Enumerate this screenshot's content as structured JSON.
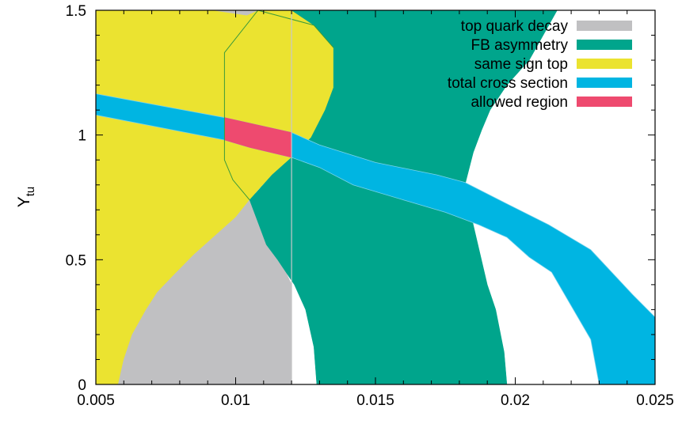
{
  "chart_data": {
    "type": "area",
    "ylabel": "Y",
    "ylabel_sub": "tu",
    "xlim": [
      0.005,
      0.025
    ],
    "ylim": [
      0,
      1.5
    ],
    "x_ticks": [
      0.005,
      0.01,
      0.015,
      0.02,
      0.025
    ],
    "x_tick_labels": [
      "0.005",
      "0.01",
      "0.015",
      "0.02",
      "0.025"
    ],
    "y_ticks": [
      0,
      0.5,
      1,
      1.5
    ],
    "y_tick_labels": [
      "0",
      "0.5",
      "1",
      "1.5"
    ],
    "grid": false,
    "legend_position": "top-right",
    "reference_line_x": 0.012,
    "series": [
      {
        "key": "same_sign_top",
        "name": "same sign top",
        "color": "#ebe330",
        "polygon": [
          [
            0.005,
            1.5
          ],
          [
            0.012,
            1.5
          ],
          [
            0.0128,
            1.44
          ],
          [
            0.0135,
            1.35
          ],
          [
            0.0135,
            1.19
          ],
          [
            0.0132,
            1.1
          ],
          [
            0.0127,
            0.99
          ],
          [
            0.012,
            0.91
          ],
          [
            0.0113,
            0.84
          ],
          [
            0.0108,
            0.78
          ],
          [
            0.0105,
            0.74
          ],
          [
            0.01,
            0.67
          ],
          [
            0.0085,
            0.52
          ],
          [
            0.0078,
            0.44
          ],
          [
            0.0072,
            0.37
          ],
          [
            0.0068,
            0.3
          ],
          [
            0.0063,
            0.2
          ],
          [
            0.006,
            0.1
          ],
          [
            0.0058,
            0.0
          ],
          [
            0.005,
            0.0
          ]
        ]
      },
      {
        "key": "top_quark_decay",
        "name": "top quark decay",
        "color": "#c0c0c2",
        "polygon": [
          [
            0.0058,
            0.0
          ],
          [
            0.006,
            0.1
          ],
          [
            0.0063,
            0.2
          ],
          [
            0.0068,
            0.3
          ],
          [
            0.0072,
            0.37
          ],
          [
            0.0078,
            0.44
          ],
          [
            0.0085,
            0.52
          ],
          [
            0.01,
            0.67
          ],
          [
            0.0105,
            0.74
          ],
          [
            0.0108,
            0.65
          ],
          [
            0.0111,
            0.56
          ],
          [
            0.0115,
            0.5
          ],
          [
            0.0118,
            0.45
          ],
          [
            0.012,
            0.4
          ],
          [
            0.012,
            0.0
          ]
        ]
      },
      {
        "key": "top_quark_decay_strip",
        "name": "",
        "color": "#c0c0c2",
        "polygon": [
          [
            0.0092,
            1.5
          ],
          [
            0.0108,
            1.5
          ],
          [
            0.0104,
            1.48
          ]
        ]
      },
      {
        "key": "fb_asymmetry",
        "name": "FB asymmetry",
        "color": "#00a58c",
        "polygon": [
          [
            0.0108,
            1.5
          ],
          [
            0.0215,
            1.5
          ],
          [
            0.021,
            1.4
          ],
          [
            0.0205,
            1.3
          ],
          [
            0.0197,
            1.2
          ],
          [
            0.0191,
            1.1
          ],
          [
            0.0188,
            1.02
          ],
          [
            0.0185,
            0.93
          ],
          [
            0.0182,
            0.8
          ],
          [
            0.0185,
            0.64
          ],
          [
            0.019,
            0.4
          ],
          [
            0.0193,
            0.3
          ],
          [
            0.0196,
            0.13
          ],
          [
            0.0197,
            0.0
          ],
          [
            0.0129,
            0.0
          ],
          [
            0.0128,
            0.15
          ],
          [
            0.0125,
            0.3
          ],
          [
            0.0121,
            0.4
          ],
          [
            0.0118,
            0.45
          ],
          [
            0.0115,
            0.5
          ],
          [
            0.0111,
            0.56
          ],
          [
            0.0108,
            0.65
          ],
          [
            0.0105,
            0.74
          ],
          [
            0.0113,
            0.84
          ],
          [
            0.012,
            0.91
          ],
          [
            0.0127,
            0.99
          ],
          [
            0.0132,
            1.1
          ],
          [
            0.0135,
            1.19
          ],
          [
            0.0135,
            1.35
          ],
          [
            0.0128,
            1.44
          ],
          [
            0.012,
            1.5
          ]
        ]
      },
      {
        "key": "total_cross_section",
        "name": "total cross section",
        "color": "#00b5e2",
        "polygon": [
          [
            0.005,
            1.165
          ],
          [
            0.0096,
            1.07
          ],
          [
            0.012,
            1.01
          ],
          [
            0.013,
            0.96
          ],
          [
            0.015,
            0.89
          ],
          [
            0.0172,
            0.84
          ],
          [
            0.0182,
            0.81
          ],
          [
            0.0196,
            0.73
          ],
          [
            0.0212,
            0.64
          ],
          [
            0.0227,
            0.54
          ],
          [
            0.0242,
            0.36
          ],
          [
            0.025,
            0.27
          ],
          [
            0.025,
            0.0
          ],
          [
            0.023,
            0.0
          ],
          [
            0.0227,
            0.18
          ],
          [
            0.0213,
            0.45
          ],
          [
            0.0205,
            0.51
          ],
          [
            0.0197,
            0.59
          ],
          [
            0.0187,
            0.64
          ],
          [
            0.0175,
            0.69
          ],
          [
            0.016,
            0.74
          ],
          [
            0.0142,
            0.8
          ],
          [
            0.013,
            0.87
          ],
          [
            0.012,
            0.91
          ],
          [
            0.0105,
            0.95
          ],
          [
            0.0096,
            0.98
          ],
          [
            0.005,
            1.08
          ]
        ]
      },
      {
        "key": "allowed_region",
        "name": "allowed region",
        "color": "#ee4a6f",
        "polygon": [
          [
            0.0096,
            1.07
          ],
          [
            0.012,
            1.01
          ],
          [
            0.012,
            0.91
          ],
          [
            0.0105,
            0.95
          ],
          [
            0.0096,
            0.98
          ]
        ]
      }
    ],
    "outline_paths": [
      [
        [
          0.0108,
          1.5
        ],
        [
          0.0096,
          1.33
        ],
        [
          0.0096,
          0.9
        ],
        [
          0.0099,
          0.82
        ],
        [
          0.0105,
          0.74
        ]
      ],
      [
        [
          0.0108,
          1.5
        ],
        [
          0.0128,
          1.44
        ],
        [
          0.0135,
          1.35
        ]
      ]
    ],
    "legend_order": [
      "top_quark_decay",
      "fb_asymmetry",
      "same_sign_top",
      "total_cross_section",
      "allowed_region"
    ]
  }
}
